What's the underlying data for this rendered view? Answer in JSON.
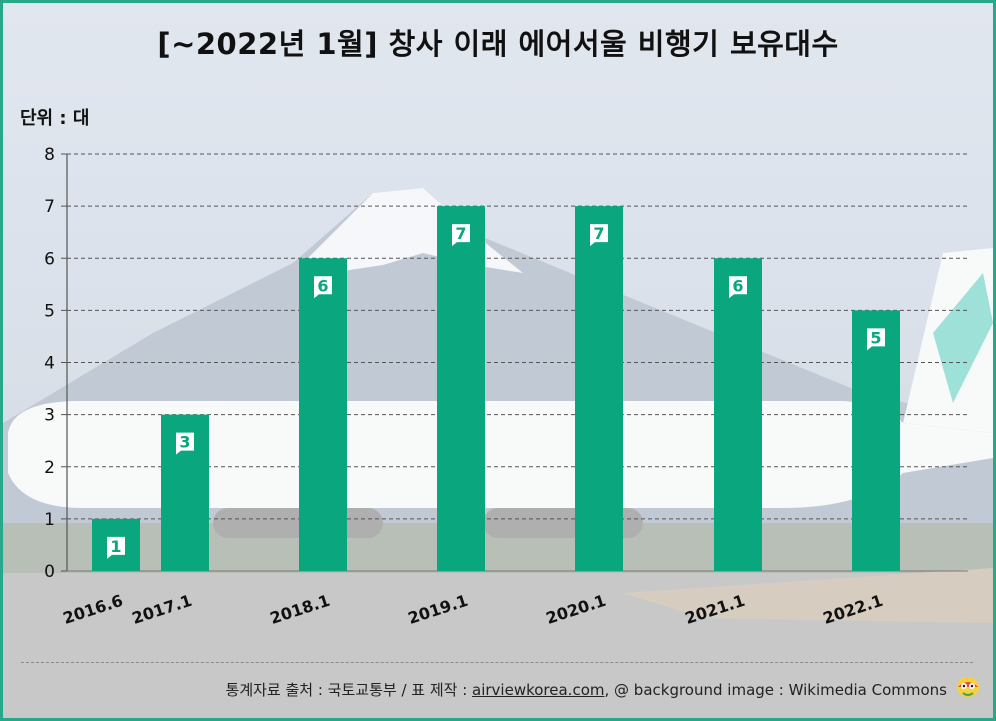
{
  "title": "[~2022년 1월] 창사 이래 에어서울 비행기 보유대수",
  "unit_label": "단위 : 대",
  "source": {
    "prefix": "통계자료 출처 : 국토교통부 / 표 제작 : ",
    "link": "airviewkorea.com",
    "suffix": ", @ background image : Wikimedia Commons"
  },
  "colors": {
    "bar": "#0aa67e",
    "border": "#25a98a",
    "label_text": "#ffffff"
  },
  "icons": {
    "mascot": "mascot-logo-icon"
  },
  "chart_data": {
    "type": "bar",
    "title": "[~2022년 1월] 창사 이래 에어서울 비행기 보유대수",
    "ylabel": "단위 : 대",
    "xlabel": "",
    "categories": [
      "2016.6",
      "2017.1",
      "2018.1",
      "2019.1",
      "2020.1",
      "2021.1",
      "2022.1"
    ],
    "values": [
      1,
      3,
      6,
      7,
      7,
      6,
      5
    ],
    "ylim": [
      0,
      8
    ],
    "yticks": [
      0,
      1,
      2,
      3,
      4,
      5,
      6,
      7,
      8
    ],
    "grid": true
  }
}
